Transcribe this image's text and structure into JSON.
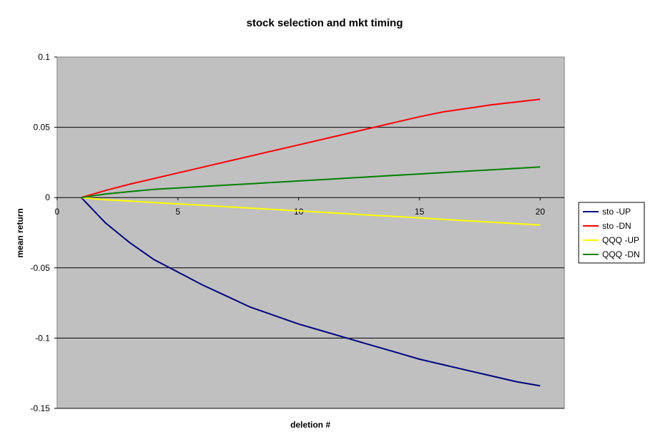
{
  "chart_data": {
    "type": "line",
    "title": "stock selection and mkt timing",
    "xlabel": "deletion #",
    "ylabel": "mean return",
    "xlim": [
      0,
      21
    ],
    "ylim": [
      -0.15,
      0.1
    ],
    "x_ticks": [
      0,
      5,
      10,
      15,
      20
    ],
    "x_tick_labels": [
      "0",
      "5",
      "10",
      "15",
      "20"
    ],
    "y_ticks": [
      0.1,
      0.05,
      0,
      -0.05,
      -0.1,
      -0.15
    ],
    "y_tick_labels": [
      "0.1",
      "0.05",
      "0",
      "-0.05",
      "-0.1",
      "-0.15"
    ],
    "grid": "horizontal",
    "plot_background": "#c0c0c0",
    "legend_position": "right",
    "x": [
      1,
      2,
      3,
      4,
      5,
      6,
      7,
      8,
      9,
      10,
      11,
      12,
      13,
      14,
      15,
      16,
      17,
      18,
      19,
      20
    ],
    "series": [
      {
        "name": "sto -UP",
        "color": "#000080",
        "values": [
          0,
          -0.018,
          -0.032,
          -0.044,
          -0.053,
          -0.062,
          -0.07,
          -0.078,
          -0.084,
          -0.09,
          -0.095,
          -0.1,
          -0.105,
          -0.11,
          -0.115,
          -0.119,
          -0.123,
          -0.127,
          -0.131,
          -0.134
        ]
      },
      {
        "name": "sto -DN",
        "color": "#ff0000",
        "values": [
          0,
          0.005,
          0.0095,
          0.0135,
          0.0175,
          0.0215,
          0.0255,
          0.0295,
          0.0335,
          0.0375,
          0.0415,
          0.0455,
          0.0495,
          0.0535,
          0.0575,
          0.061,
          0.0635,
          0.066,
          0.068,
          0.07
        ]
      },
      {
        "name": "QQQ -UP",
        "color": "#ffff00",
        "values": [
          0,
          -0.0015,
          -0.0025,
          -0.0035,
          -0.0045,
          -0.0055,
          -0.0065,
          -0.0075,
          -0.0085,
          -0.0095,
          -0.0105,
          -0.0115,
          -0.0125,
          -0.0135,
          -0.0145,
          -0.0155,
          -0.0165,
          -0.0175,
          -0.0185,
          -0.0195
        ]
      },
      {
        "name": "QQQ -DN",
        "color": "#008000",
        "values": [
          0,
          0.0025,
          0.0042,
          0.0058,
          0.0068,
          0.0078,
          0.0088,
          0.0098,
          0.0108,
          0.0118,
          0.0128,
          0.0138,
          0.0148,
          0.0158,
          0.0168,
          0.0178,
          0.0188,
          0.0198,
          0.0208,
          0.0218
        ]
      }
    ]
  }
}
